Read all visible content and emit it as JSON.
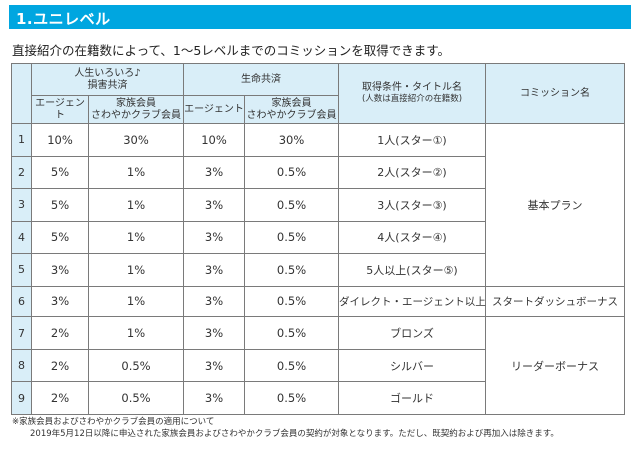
{
  "section_title": "1.ユニレベル",
  "intro": "直接紹介の在籍数によって、1〜5レベルまでのコミッションを取得できます。",
  "headers": {
    "group1": "人生いろいろ♪\n損害共済",
    "group2": "生命共済",
    "condition": "取得条件・タイトル名",
    "condition_note": "(人数は直接紹介の在籍数)",
    "commission": "コミッション名",
    "agent": "エージェント",
    "family": "家族会員\nさわやかクラブ会員"
  },
  "rows": [
    {
      "no": "1",
      "a1": "10%",
      "f1": "30%",
      "a2": "10%",
      "f2": "30%",
      "cond": "1人(スター①)"
    },
    {
      "no": "2",
      "a1": "5%",
      "f1": "1%",
      "a2": "3%",
      "f2": "0.5%",
      "cond": "2人(スター②)"
    },
    {
      "no": "3",
      "a1": "5%",
      "f1": "1%",
      "a2": "3%",
      "f2": "0.5%",
      "cond": "3人(スター③)"
    },
    {
      "no": "4",
      "a1": "5%",
      "f1": "1%",
      "a2": "3%",
      "f2": "0.5%",
      "cond": "4人(スター④)"
    },
    {
      "no": "5",
      "a1": "3%",
      "f1": "1%",
      "a2": "3%",
      "f2": "0.5%",
      "cond": "5人以上(スター⑤)"
    },
    {
      "no": "6",
      "a1": "3%",
      "f1": "1%",
      "a2": "3%",
      "f2": "0.5%",
      "cond": "ダイレクト・エージェント以上"
    },
    {
      "no": "7",
      "a1": "2%",
      "f1": "1%",
      "a2": "3%",
      "f2": "0.5%",
      "cond": "ブロンズ"
    },
    {
      "no": "8",
      "a1": "2%",
      "f1": "0.5%",
      "a2": "3%",
      "f2": "0.5%",
      "cond": "シルバー"
    },
    {
      "no": "9",
      "a1": "2%",
      "f1": "0.5%",
      "a2": "3%",
      "f2": "0.5%",
      "cond": "ゴールド"
    }
  ],
  "commissions": {
    "basic": "基本プラン",
    "startdash": "スタートダッシュボーナス",
    "leader": "リーダーボーナス"
  },
  "footnote": [
    "※家族会員およびさわやかクラブ会員の適用について",
    "2019年5月12日以降に申込された家族会員およびさわやかクラブ会員の契約が対象となります。ただし、既契約および再加入は除きます。"
  ],
  "colors": {
    "accent": "#00a6e0",
    "header_bg": "#d9eef8"
  }
}
